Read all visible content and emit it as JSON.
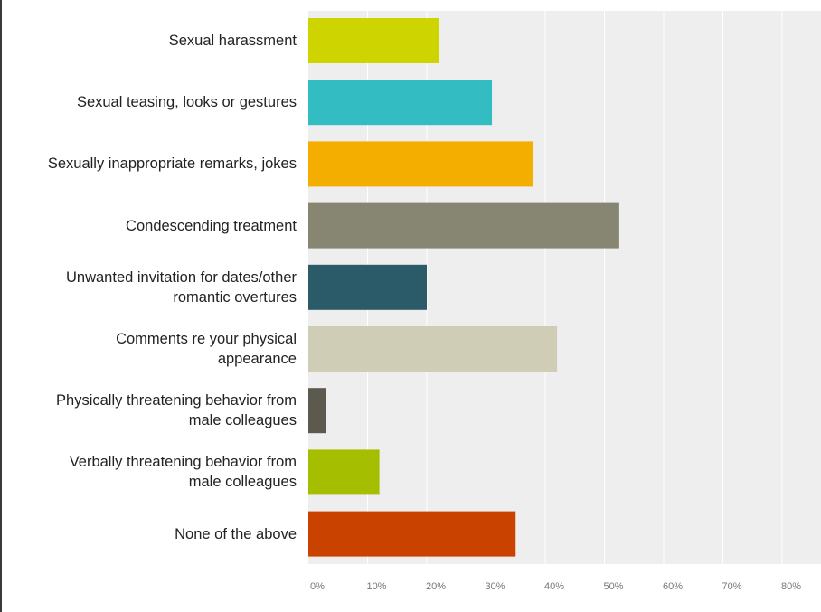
{
  "chart_data": {
    "type": "bar",
    "orientation": "horizontal",
    "categories": [
      "Sexual harassment",
      "Sexual teasing, looks or gestures",
      "Sexually inappropriate remarks, jokes",
      "Condescending treatment",
      "Unwanted invitation for dates/other\nromantic overtures",
      "Comments re your physical\nappearance",
      "Physically threatening behavior from\nmale colleagues",
      "Verbally threatening behavior from\nmale colleagues",
      "None of the above"
    ],
    "values": [
      22,
      31,
      38,
      52.5,
      20,
      42,
      3,
      12,
      35
    ],
    "colors": [
      "#cdd400",
      "#33bdc2",
      "#f4ae00",
      "#868672",
      "#2b5a69",
      "#cfcdb6",
      "#5c5a4e",
      "#a5bf00",
      "#c94200"
    ],
    "xlim": [
      0,
      85
    ],
    "x_ticks": [
      0,
      10,
      20,
      30,
      40,
      50,
      60,
      70,
      80
    ],
    "x_tick_labels": [
      "0%",
      "10%",
      "20%",
      "30%",
      "40%",
      "50%",
      "60%",
      "70%",
      "80%"
    ],
    "grid": true,
    "title": "",
    "xlabel": "",
    "ylabel": ""
  }
}
